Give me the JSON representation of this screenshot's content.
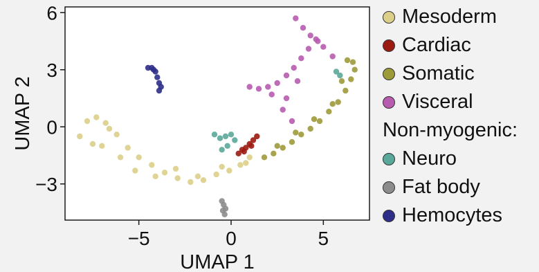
{
  "chart_data": {
    "type": "scatter",
    "title": "",
    "xlabel": "UMAP 1",
    "ylabel": "UMAP 2",
    "xlim": [
      -9,
      7.5
    ],
    "ylim": [
      -4.9,
      6.3
    ],
    "xticks": [
      -5,
      0,
      5
    ],
    "yticks": [
      -3,
      0,
      3,
      6
    ],
    "xtick_labels": [
      "−5",
      "0",
      "5"
    ],
    "ytick_labels": [
      "−3",
      "0",
      "3",
      "6"
    ],
    "grid": false,
    "legend_position": "right",
    "series": [
      {
        "name": "Mesoderm",
        "color": "#dccf8a",
        "x": [
          -8.2,
          -7.8,
          -7.3,
          -6.8,
          -6.2,
          -5.6,
          -5.0,
          -4.3,
          -3.6,
          -2.9,
          -2.2,
          -1.5,
          -0.8,
          -0.1,
          0.5,
          1.0,
          -7.0,
          -6.0,
          -5.2,
          -4.1,
          -3.0,
          -1.8,
          -0.5,
          0.8,
          -7.5,
          -6.6
        ],
        "y": [
          -0.5,
          0.3,
          0.5,
          0.2,
          -0.4,
          -1.1,
          -1.6,
          -2.0,
          -2.4,
          -2.7,
          -2.9,
          -2.8,
          -2.5,
          -2.3,
          -2.0,
          -1.6,
          -1.0,
          -1.6,
          -2.3,
          -2.6,
          -2.2,
          -2.6,
          -2.1,
          -1.9,
          -0.9,
          -0.1
        ]
      },
      {
        "name": "Cardiac",
        "color": "#9b1b12",
        "x": [
          0.4,
          0.6,
          0.8,
          1.0,
          1.2,
          1.4,
          0.7,
          1.1
        ],
        "y": [
          -1.4,
          -1.2,
          -1.1,
          -0.9,
          -0.7,
          -0.5,
          -1.3,
          -1.0
        ]
      },
      {
        "name": "Somatic",
        "color": "#9d9a3a",
        "x": [
          1.8,
          2.3,
          2.8,
          3.3,
          3.8,
          4.3,
          4.8,
          5.3,
          5.8,
          6.2,
          6.5,
          6.7,
          6.6,
          6.3,
          2.5,
          3.5,
          4.5,
          5.5,
          6.0
        ],
        "y": [
          -1.6,
          -1.4,
          -1.1,
          -0.8,
          -0.4,
          -0.1,
          0.3,
          0.8,
          1.3,
          1.9,
          2.5,
          3.0,
          3.4,
          3.5,
          -1.0,
          -0.3,
          0.4,
          1.2,
          2.4
        ]
      },
      {
        "name": "Visceral",
        "color": "#b85cb0",
        "x": [
          3.5,
          3.9,
          4.3,
          4.7,
          4.2,
          3.8,
          3.4,
          3.0,
          2.5,
          2.0,
          1.5,
          1.0,
          3.0,
          2.8,
          3.3,
          5.0,
          5.5,
          4.6,
          3.6,
          2.2
        ],
        "y": [
          5.7,
          5.2,
          4.8,
          4.5,
          4.1,
          3.6,
          3.1,
          2.7,
          2.3,
          2.1,
          2.0,
          2.1,
          1.5,
          0.9,
          0.3,
          4.2,
          3.7,
          4.6,
          2.4,
          1.7
        ]
      },
      {
        "name": "Neuro",
        "color": "#5aa89a",
        "x": [
          -0.9,
          -0.6,
          -0.3,
          0.0,
          0.2,
          -0.5,
          -0.2,
          5.7,
          5.9
        ],
        "y": [
          -0.4,
          -0.6,
          -0.5,
          -0.4,
          -0.7,
          -1.2,
          -1.0,
          2.9,
          2.7
        ]
      },
      {
        "name": "Fat body",
        "color": "#8c8c8c",
        "x": [
          -0.5,
          -0.4,
          -0.3,
          -0.35,
          -0.45
        ],
        "y": [
          -3.9,
          -4.1,
          -4.3,
          -4.6,
          -4.4
        ]
      },
      {
        "name": "Hemocytes",
        "color": "#2f2f8a",
        "x": [
          -4.5,
          -4.3,
          -4.1,
          -4.0,
          -3.9,
          -3.8,
          -3.9,
          -4.2
        ],
        "y": [
          3.1,
          3.1,
          2.9,
          2.6,
          2.3,
          2.1,
          1.9,
          3.0
        ]
      }
    ]
  },
  "legend": {
    "items": [
      {
        "label": "Mesoderm",
        "color": "#dccf8a"
      },
      {
        "label": "Cardiac",
        "color": "#9b1b12"
      },
      {
        "label": "Somatic",
        "color": "#9d9a3a"
      },
      {
        "label": "Visceral",
        "color": "#b85cb0"
      }
    ],
    "subheading": "Non-myogenic:",
    "subitems": [
      {
        "label": "Neuro",
        "color": "#5aa89a"
      },
      {
        "label": "Fat body",
        "color": "#8c8c8c"
      },
      {
        "label": "Hemocytes",
        "color": "#2f2f8a"
      }
    ]
  }
}
